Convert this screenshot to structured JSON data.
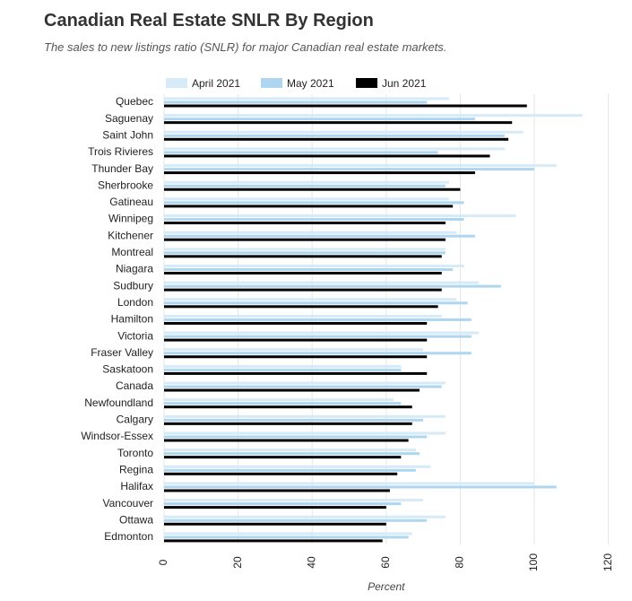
{
  "header": {
    "title": "Canadian Real Estate SNLR By Region",
    "subtitle": "The sales to new listings ratio (SNLR) for major Canadian real estate markets."
  },
  "colors": {
    "april": "#d6eaf8",
    "may": "#aed6f1",
    "june": "#000000",
    "grid": "#e6e6e6"
  },
  "chart_data": {
    "type": "bar",
    "orientation": "horizontal",
    "xlabel": "Percent",
    "ylabel": "",
    "xlim": [
      0,
      120
    ],
    "xticks": [
      0,
      20,
      40,
      60,
      80,
      100,
      120
    ],
    "grid": true,
    "legend_position": "top",
    "categories": [
      "Quebec",
      "Saguenay",
      "Saint John",
      "Trois Rivieres",
      "Thunder Bay",
      "Sherbrooke",
      "Gatineau",
      "Winnipeg",
      "Kitchener",
      "Montreal",
      "Niagara",
      "Sudbury",
      "London",
      "Hamilton",
      "Victoria",
      "Fraser Valley",
      "Saskatoon",
      "Canada",
      "Newfoundland",
      "Calgary",
      "Windsor-Essex",
      "Toronto",
      "Regina",
      "Halifax",
      "Vancouver",
      "Ottawa",
      "Edmonton"
    ],
    "series": [
      {
        "name": "April 2021",
        "values": [
          77,
          113,
          97,
          92,
          106,
          77,
          77,
          95,
          79,
          76,
          81,
          85,
          79,
          75,
          85,
          70,
          64,
          76,
          62,
          76,
          76,
          68,
          72,
          100,
          70,
          76,
          67
        ]
      },
      {
        "name": "May 2021",
        "values": [
          71,
          84,
          92,
          74,
          100,
          76,
          81,
          81,
          84,
          76,
          78,
          91,
          82,
          83,
          83,
          83,
          64,
          75,
          64,
          70,
          71,
          69,
          68,
          106,
          64,
          71,
          66
        ]
      },
      {
        "name": "Jun 2021",
        "values": [
          98,
          94,
          93,
          88,
          84,
          80,
          78,
          76,
          76,
          75,
          75,
          75,
          74,
          71,
          71,
          71,
          71,
          69,
          67,
          67,
          66,
          64,
          63,
          61,
          60,
          60,
          59
        ]
      }
    ]
  }
}
